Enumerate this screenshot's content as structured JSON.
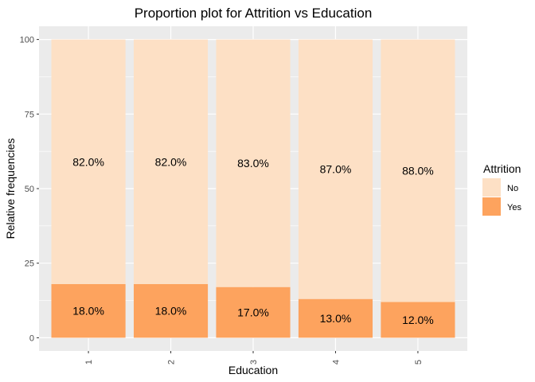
{
  "chart_data": {
    "type": "bar",
    "stacked": true,
    "title": "Proportion plot for Attrition vs Education",
    "xlabel": "Education",
    "ylabel": "Relative frequencies",
    "categories": [
      "1",
      "2",
      "3",
      "4",
      "5"
    ],
    "ylim": [
      0,
      100
    ],
    "yticks": [
      0,
      25,
      50,
      75,
      100
    ],
    "grid": true,
    "legend_position": "right",
    "legend_title": "Attrition",
    "series": [
      {
        "name": "Yes",
        "color": "#fda35e",
        "values": [
          18,
          18,
          17,
          13,
          12
        ],
        "labels": [
          "18.0%",
          "18.0%",
          "17.0%",
          "13.0%",
          "12.0%"
        ]
      },
      {
        "name": "No",
        "color": "#fde0c5",
        "values": [
          82,
          82,
          83,
          87,
          88
        ],
        "labels": [
          "82.0%",
          "82.0%",
          "83.0%",
          "87.0%",
          "88.0%"
        ]
      }
    ],
    "legend_order": [
      "No",
      "Yes"
    ]
  },
  "colors": {
    "panel_background": "#ebebeb",
    "grid_line": "#ffffff",
    "tick_text": "#4d4d4d",
    "tick_mark": "#333333"
  }
}
